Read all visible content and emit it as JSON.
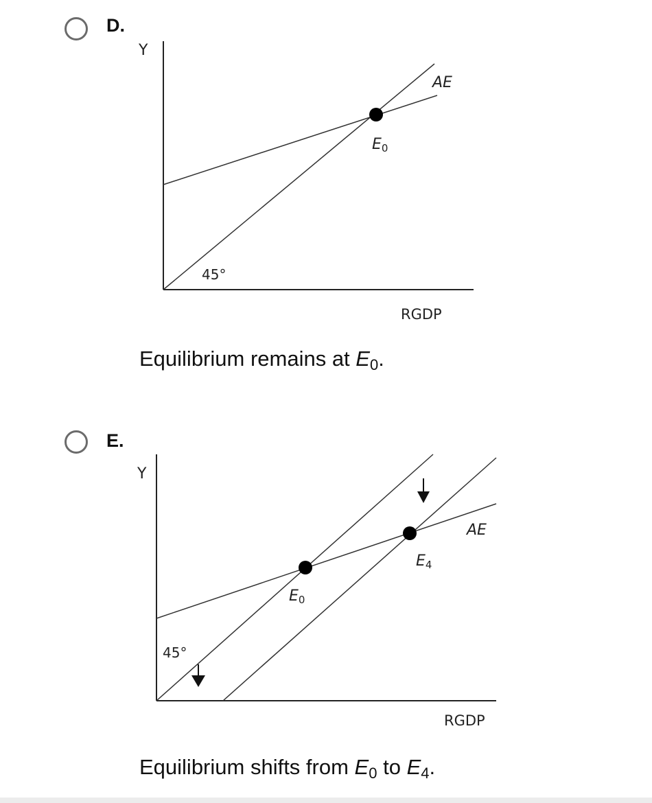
{
  "option_d": {
    "letter": "D.",
    "graph": {
      "y_axis_label": "Y",
      "x_axis_label": "RGDP",
      "angle_label": "45°",
      "ae_label": "AE",
      "point_e0": {
        "letter": "E",
        "sub": "0"
      }
    },
    "caption": {
      "pre": "Equilibrium remains at ",
      "e_letter": "E",
      "e_sub": "0",
      "post": "."
    }
  },
  "option_e": {
    "letter": "E.",
    "graph": {
      "y_axis_label": "Y",
      "x_axis_label": "RGDP",
      "angle_label": "45°",
      "ae_label": "AE",
      "point_e0": {
        "letter": "E",
        "sub": "0"
      },
      "point_e4": {
        "letter": "E",
        "sub": "4"
      }
    },
    "caption": {
      "pre": "Equilibrium shifts from ",
      "e1_letter": "E",
      "e1_sub": "0",
      "mid": " to ",
      "e2_letter": "E",
      "e2_sub": "4",
      "post": "."
    }
  }
}
